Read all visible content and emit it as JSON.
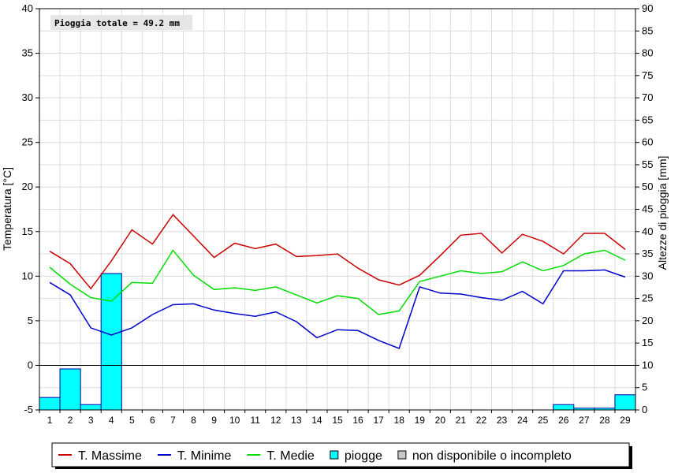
{
  "chart_data": {
    "type": "line",
    "title": "",
    "annotation": "Pioggia totale = 49.2 mm",
    "xlabel": "",
    "ylabel_left": "Temperatura [°C]",
    "ylabel_right": "Altezze di pioggia [mm]",
    "ylim_left": [
      -5,
      40
    ],
    "ylim_right": [
      0,
      90
    ],
    "yticks_left": [
      -5,
      0,
      5,
      10,
      15,
      20,
      25,
      30,
      35,
      40
    ],
    "yticks_right": [
      0,
      5,
      10,
      15,
      20,
      25,
      30,
      35,
      40,
      45,
      50,
      55,
      60,
      65,
      70,
      75,
      80,
      85,
      90
    ],
    "grid": true,
    "legend_position": "bottom",
    "x": [
      1,
      2,
      3,
      4,
      5,
      6,
      7,
      8,
      9,
      10,
      11,
      12,
      13,
      14,
      15,
      16,
      17,
      18,
      19,
      20,
      21,
      22,
      23,
      24,
      25,
      26,
      27,
      28,
      29
    ],
    "series": [
      {
        "name": "T. Massime",
        "type": "line",
        "axis": "left",
        "color": "#cc0000",
        "values": [
          12.8,
          11.4,
          8.6,
          11.7,
          15.2,
          13.6,
          16.9,
          14.5,
          12.1,
          13.7,
          13.1,
          13.6,
          12.2,
          12.3,
          12.5,
          10.9,
          9.6,
          9.0,
          10.1,
          12.3,
          14.6,
          14.8,
          12.6,
          14.7,
          13.9,
          12.5,
          14.8,
          14.8,
          13.0
        ]
      },
      {
        "name": "T. Minime",
        "type": "line",
        "axis": "left",
        "color": "#0000cc",
        "values": [
          9.3,
          7.9,
          4.2,
          3.4,
          4.2,
          5.7,
          6.8,
          6.9,
          6.2,
          5.8,
          5.5,
          6.0,
          4.9,
          3.1,
          4.0,
          3.9,
          2.8,
          1.9,
          8.8,
          8.1,
          8.0,
          7.6,
          7.3,
          8.3,
          6.9,
          10.6,
          10.6,
          10.7,
          9.9
        ]
      },
      {
        "name": "T. Medie",
        "type": "line",
        "axis": "left",
        "color": "#00dd00",
        "values": [
          11.0,
          9.1,
          7.6,
          7.2,
          9.3,
          9.2,
          12.9,
          10.1,
          8.5,
          8.7,
          8.4,
          8.8,
          7.9,
          7.0,
          7.8,
          7.5,
          5.7,
          6.1,
          9.4,
          10.0,
          10.6,
          10.3,
          10.5,
          11.6,
          10.6,
          11.2,
          12.5,
          12.9,
          11.8
        ]
      },
      {
        "name": "piogge",
        "type": "bar",
        "axis": "right",
        "color": "#00ffff",
        "values": [
          2.8,
          9.2,
          1.2,
          30.6,
          0,
          0,
          0,
          0,
          0,
          0,
          0,
          0,
          0,
          0,
          0,
          0,
          0,
          0,
          0,
          0,
          0,
          0,
          0,
          0,
          0,
          1.2,
          0.4,
          0.4,
          3.4
        ]
      }
    ],
    "legend": [
      {
        "name": "T. Massime",
        "kind": "line",
        "color": "#cc0000"
      },
      {
        "name": "T. Minime",
        "kind": "line",
        "color": "#0000cc"
      },
      {
        "name": "T. Medie",
        "kind": "line",
        "color": "#00dd00"
      },
      {
        "name": "piogge",
        "kind": "box",
        "color": "#00ffff"
      },
      {
        "name": "non disponibile o incompleto",
        "kind": "box",
        "color": "#c8c8c8"
      }
    ]
  }
}
